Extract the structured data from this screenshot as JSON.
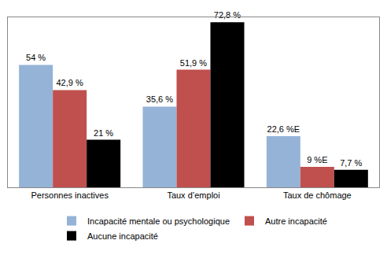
{
  "chart_data": {
    "type": "bar",
    "categories": [
      "Personnes inactives",
      "Taux d’emploi",
      "Taux de chômage"
    ],
    "series": [
      {
        "name": "Incapacité mentale ou psychologique",
        "color": "#95b3d7",
        "values": [
          54,
          35.6,
          22.6
        ],
        "value_labels": [
          "54 %",
          "35,6 %",
          "22,6 %E"
        ]
      },
      {
        "name": "Autre incapacité",
        "color": "#c0504d",
        "values": [
          42.9,
          51.9,
          9
        ],
        "value_labels": [
          "42,9 %",
          "51,9 %",
          "9 %E"
        ]
      },
      {
        "name": "Aucune incapacité",
        "color": "#000000",
        "values": [
          21,
          72.8,
          7.7
        ],
        "value_labels": [
          "21 %",
          "72,8 %",
          "7,7 %"
        ]
      }
    ],
    "ylim": [
      0,
      75
    ],
    "yticks": [],
    "grid": false,
    "data_labels": true,
    "tick_labels": "x",
    "legend": "bottom"
  }
}
